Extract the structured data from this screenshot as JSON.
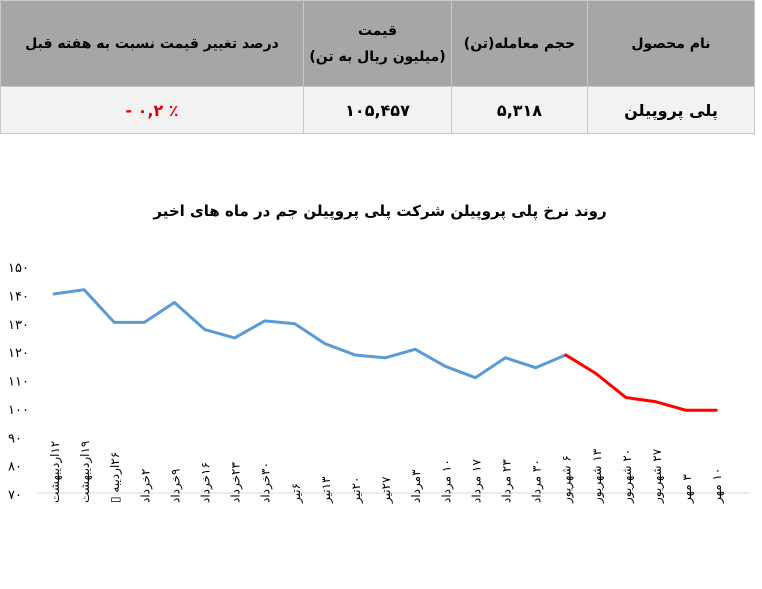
{
  "table": {
    "headers": {
      "product": "نام محصول",
      "volume": "حجم معامله(تن)",
      "price_line1": "قیمت",
      "price_line2": "(میلیون ریال به تن)",
      "change": "درصد تغییر قیمت نسبت به هفته قبل"
    },
    "row": {
      "product": "پلی پروپیلن",
      "volume": "۵,۳۱۸",
      "price": "۱۰۵,۴۵۷",
      "change": "٪ ۰,۲ -"
    }
  },
  "colors": {
    "header_bg": "#a6a6a6",
    "row_bg": "#f2f2f2",
    "negative": "#e00000",
    "line_blue": "#5b9bd5",
    "line_red": "#ff0000"
  },
  "chart_data": {
    "type": "line",
    "title": "روند نرخ پلی پروپیلن شرکت پلی پروپیلن جم در ماه های اخیر",
    "categories": [
      "۱۲اردیبهشت",
      "۱۹اردیبهشت",
      "۲۶اردیبه ▯",
      "۲خرداد",
      "۹خرداد",
      "۱۶خرداد",
      "۲۳خرداد",
      "۳۰خرداد",
      "۶تیر",
      "۱۳تیر",
      "۲۰تیر",
      "۲۷تیر",
      "۳مرداد",
      "۱۰ مرداد",
      "۱۷ مرداد",
      "۲۳ مرداد",
      "۳۰ مرداد",
      "۶ شهریور",
      "۱۳ شهریور",
      "۲۰ شهریور",
      "۲۷ شهریور",
      "۳ مهر",
      "۱۰ مهر"
    ],
    "values": [
      140.5,
      142,
      130.5,
      130.5,
      137.5,
      128,
      125,
      131,
      130,
      123,
      119,
      118,
      121,
      115,
      111,
      118,
      114.5,
      119,
      112.5,
      104,
      102.5,
      99.5,
      99.5
    ],
    "ylim": [
      70,
      150
    ],
    "yticks": [
      70,
      80,
      90,
      100,
      110,
      120,
      130,
      140,
      150
    ],
    "ytick_labels": [
      "۷۰",
      "۸۰",
      "۹۰",
      "۱۰۰",
      "۱۱۰",
      "۱۲۰",
      "۱۳۰",
      "۱۴۰",
      "۱۵۰"
    ],
    "series_colors": {
      "blue_until_index": 17,
      "blue": "#5b9bd5",
      "red": "#ff0000"
    },
    "grid": false
  }
}
